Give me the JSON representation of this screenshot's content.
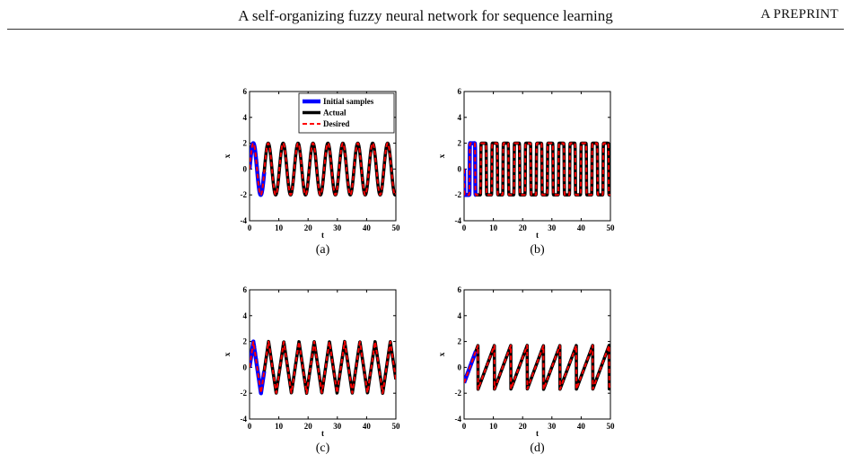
{
  "header": {
    "title": "A self-organizing fuzzy neural network for sequence learning",
    "right": "A PREPRINT"
  },
  "legend": {
    "entries": [
      "Initial samples",
      "Actual",
      "Desired"
    ],
    "colors": [
      "#0000ff",
      "#000000",
      "#ff0000"
    ]
  },
  "chart_data": [
    {
      "type": "line",
      "label": "(a)",
      "waveform": "sine",
      "xlabel": "t",
      "ylabel": "x",
      "xlim": [
        0,
        50
      ],
      "ylim": [
        -4,
        6
      ],
      "xticks": [
        0,
        10,
        20,
        30,
        40,
        50
      ],
      "yticks": [
        -4,
        -2,
        0,
        2,
        4,
        6
      ],
      "legend": "top-right",
      "series": [
        {
          "name": "Initial samples",
          "x_range": [
            0,
            5
          ],
          "amplitude": 2,
          "period": 5.1
        },
        {
          "name": "Actual",
          "x_range": [
            0,
            50
          ],
          "amplitude": 2,
          "period": 5.1
        },
        {
          "name": "Desired",
          "x_range": [
            0,
            50
          ],
          "amplitude": 2,
          "period": 5.1
        }
      ]
    },
    {
      "type": "line",
      "label": "(b)",
      "waveform": "square",
      "xlabel": "t",
      "ylabel": "x",
      "xlim": [
        0,
        50
      ],
      "ylim": [
        -4,
        6
      ],
      "xticks": [
        0,
        10,
        20,
        30,
        40,
        50
      ],
      "yticks": [
        -4,
        -2,
        0,
        2,
        4,
        6
      ],
      "series": [
        {
          "name": "Initial samples",
          "x_range": [
            0,
            4
          ],
          "amplitude": 2,
          "period": 3.8
        },
        {
          "name": "Actual",
          "x_range": [
            0,
            50
          ],
          "amplitude": 2,
          "period": 3.8
        },
        {
          "name": "Desired",
          "x_range": [
            0,
            50
          ],
          "amplitude": 2,
          "period": 3.8
        }
      ]
    },
    {
      "type": "line",
      "label": "(c)",
      "waveform": "triangle",
      "xlabel": "t",
      "ylabel": "x",
      "xlim": [
        0,
        50
      ],
      "ylim": [
        -4,
        6
      ],
      "xticks": [
        0,
        10,
        20,
        30,
        40,
        50
      ],
      "yticks": [
        -4,
        -2,
        0,
        2,
        4,
        6
      ],
      "series": [
        {
          "name": "Initial samples",
          "x_range": [
            0,
            5
          ],
          "amplitude": 2,
          "period": 5.2
        },
        {
          "name": "Actual",
          "x_range": [
            0,
            50
          ],
          "amplitude": 2,
          "period": 5.2
        },
        {
          "name": "Desired",
          "x_range": [
            0,
            50
          ],
          "amplitude": 2,
          "period": 5.2
        }
      ]
    },
    {
      "type": "line",
      "label": "(d)",
      "waveform": "sawtooth",
      "xlabel": "t",
      "ylabel": "x",
      "xlim": [
        0,
        50
      ],
      "ylim": [
        -4,
        6
      ],
      "xticks": [
        0,
        10,
        20,
        30,
        40,
        50
      ],
      "yticks": [
        -4,
        -2,
        0,
        2,
        4,
        6
      ],
      "series": [
        {
          "name": "Initial samples",
          "x_range": [
            0,
            4
          ],
          "amplitude": 1.7,
          "period": 5.6
        },
        {
          "name": "Actual",
          "x_range": [
            0,
            50
          ],
          "amplitude": 1.7,
          "period": 5.6
        },
        {
          "name": "Desired",
          "x_range": [
            0,
            50
          ],
          "amplitude": 1.7,
          "period": 5.6
        }
      ]
    }
  ]
}
